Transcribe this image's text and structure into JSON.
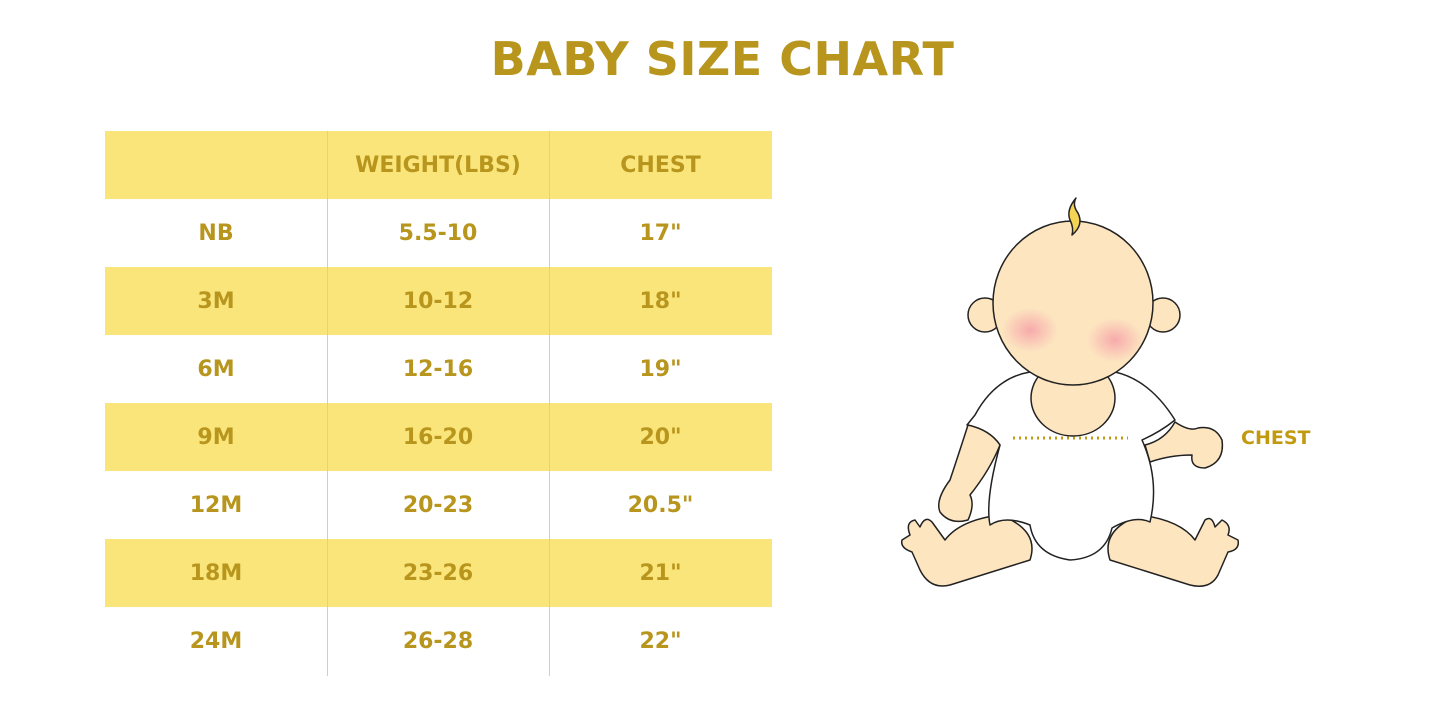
{
  "title": "BABY SIZE CHART",
  "table": {
    "headers": [
      "",
      "WEIGHT(LBS)",
      "CHEST"
    ],
    "rows": [
      [
        "NB",
        "5.5-10",
        "17\""
      ],
      [
        "3M",
        "10-12",
        "18\""
      ],
      [
        "6M",
        "12-16",
        "19\""
      ],
      [
        "9M",
        "16-20",
        "20\""
      ],
      [
        "12M",
        "20-23",
        "20.5\""
      ],
      [
        "18M",
        "23-26",
        "21\""
      ],
      [
        "24M",
        "26-28",
        "22\""
      ]
    ]
  },
  "illustration": {
    "chest_label": "CHEST"
  },
  "colors": {
    "accent": "#b8951d",
    "stripe": "#fae57b",
    "skin": "#fde5c0"
  }
}
